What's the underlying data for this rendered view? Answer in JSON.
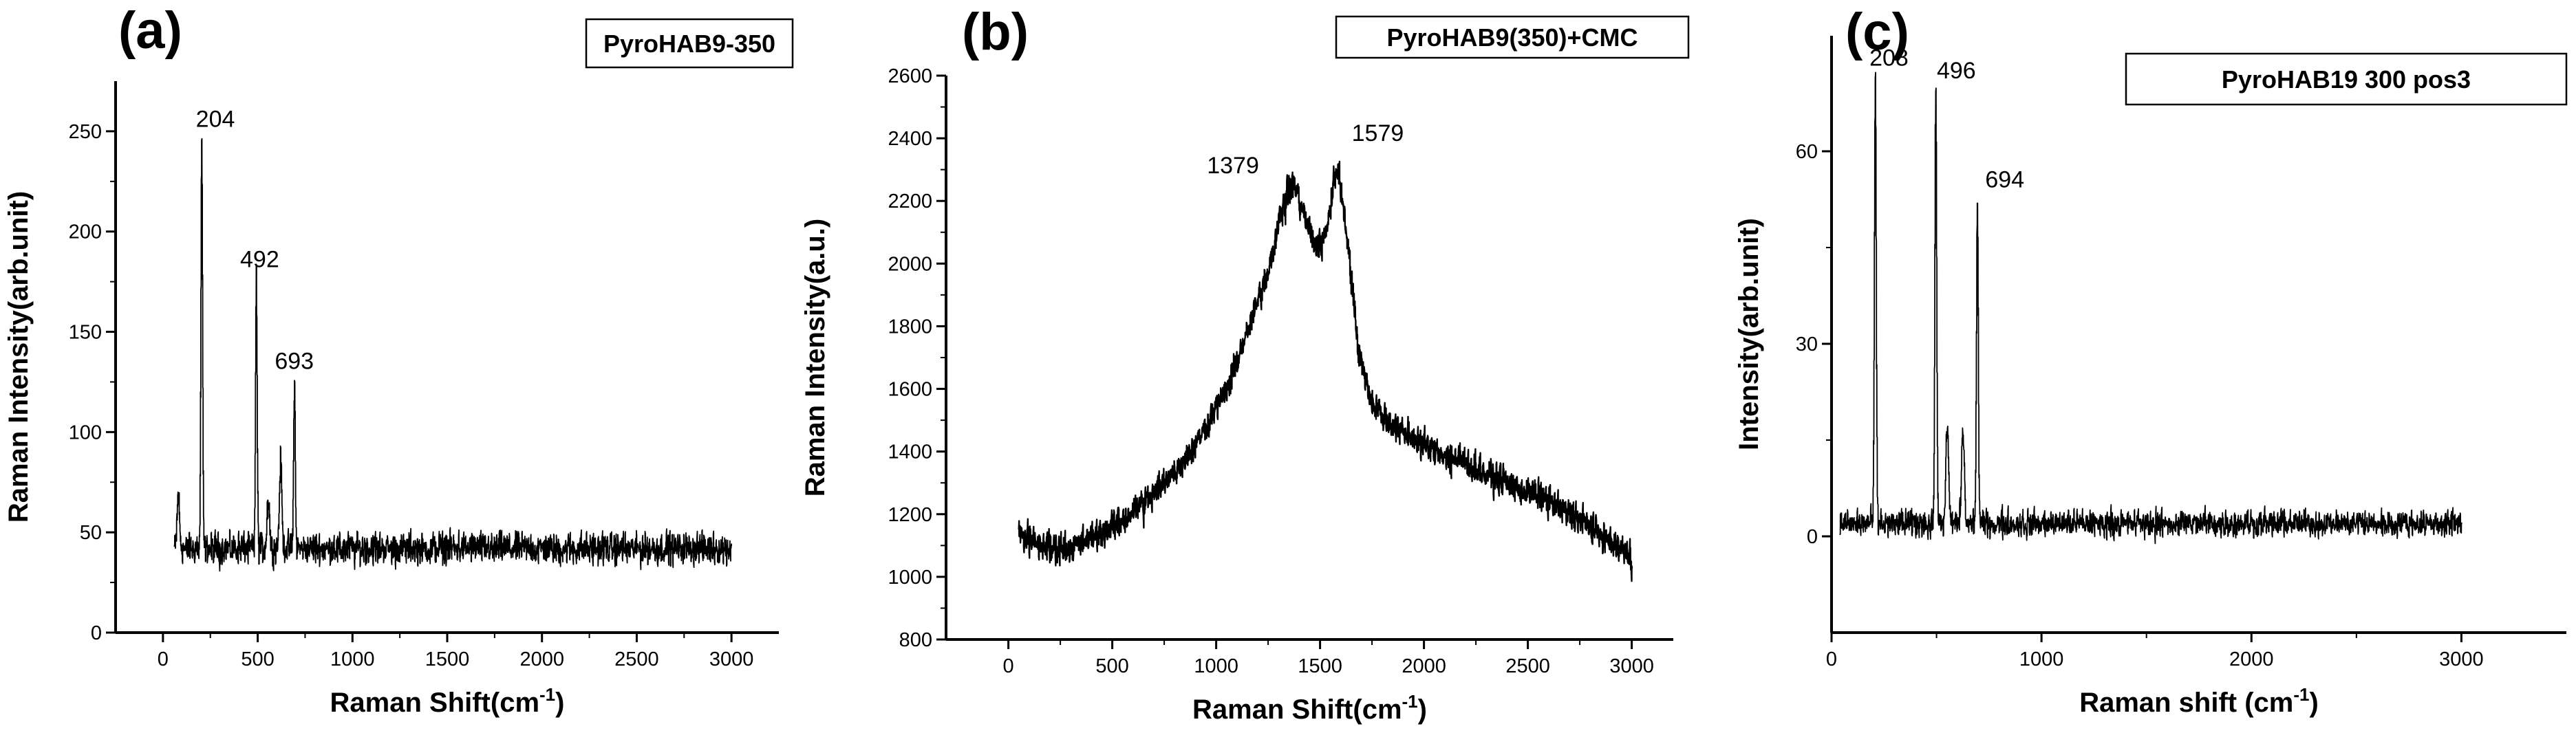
{
  "chart_data": [
    {
      "type": "line",
      "panel_label": "(a)",
      "legend": "PyroHAB9-350",
      "xlabel": "Raman Shift(cm",
      "xlabel_sup": "-1",
      "xlabel_end": ")",
      "ylabel": "Raman Intensity(arb.unit)",
      "xlim": [
        -250,
        3250
      ],
      "ylim": [
        0,
        275
      ],
      "xticks": [
        0,
        500,
        1000,
        1500,
        2000,
        2500,
        3000
      ],
      "yticks": [
        0,
        50,
        100,
        150,
        200,
        250
      ],
      "baseline": 42,
      "noise": 7,
      "x_range": [
        60,
        3000
      ],
      "peaks": [
        {
          "x": 204,
          "y": 246,
          "label": "204"
        },
        {
          "x": 492,
          "y": 176,
          "label": "492"
        },
        {
          "x": 693,
          "y": 126,
          "label": "693"
        }
      ],
      "minor_peaks": [
        {
          "x": 80,
          "y": 68
        },
        {
          "x": 555,
          "y": 68
        },
        {
          "x": 620,
          "y": 85
        }
      ]
    },
    {
      "type": "line",
      "panel_label": "(b)",
      "legend": "PyroHAB9(350)+CMC",
      "xlabel": "Raman Shift(cm",
      "xlabel_sup": "-1",
      "xlabel_end": ")",
      "ylabel": "Raman Intensity(a.u.)",
      "xlim": [
        -300,
        3200
      ],
      "ylim": [
        800,
        2600
      ],
      "xticks": [
        0,
        500,
        1000,
        1500,
        2000,
        2500,
        3000
      ],
      "yticks": [
        800,
        1000,
        1200,
        1400,
        1600,
        1800,
        2000,
        2200,
        2400,
        2600
      ],
      "noise": 40,
      "x_range": [
        50,
        3000
      ],
      "curve": [
        [
          50,
          1140
        ],
        [
          150,
          1100
        ],
        [
          300,
          1090
        ],
        [
          500,
          1160
        ],
        [
          700,
          1260
        ],
        [
          900,
          1420
        ],
        [
          1050,
          1600
        ],
        [
          1150,
          1780
        ],
        [
          1250,
          1980
        ],
        [
          1320,
          2180
        ],
        [
          1370,
          2260
        ],
        [
          1420,
          2160
        ],
        [
          1470,
          2060
        ],
        [
          1510,
          2060
        ],
        [
          1550,
          2180
        ],
        [
          1580,
          2320
        ],
        [
          1620,
          2150
        ],
        [
          1680,
          1740
        ],
        [
          1750,
          1550
        ],
        [
          1850,
          1480
        ],
        [
          2000,
          1420
        ],
        [
          2200,
          1360
        ],
        [
          2400,
          1300
        ],
        [
          2600,
          1240
        ],
        [
          2800,
          1160
        ],
        [
          3000,
          1060
        ]
      ],
      "peaks": [
        {
          "x": 1379,
          "y": 2240,
          "label": "1379"
        },
        {
          "x": 1579,
          "y": 2330,
          "label": "1579"
        }
      ]
    },
    {
      "type": "line",
      "panel_label": "(c)",
      "legend": "PyroHAB19 300 pos3",
      "xlabel": "Raman shift (cm",
      "xlabel_sup": "-1",
      "xlabel_end": ")",
      "ylabel": "Intensity(arb.unit)",
      "xlim": [
        0,
        3500
      ],
      "ylim": [
        -15,
        78
      ],
      "xticks": [
        0,
        1000,
        2000,
        3000
      ],
      "yticks": [
        0,
        30,
        60
      ],
      "baseline": 2,
      "noise": 1.8,
      "x_range": [
        40,
        3000
      ],
      "peaks": [
        {
          "x": 208,
          "y": 71,
          "label": "208"
        },
        {
          "x": 496,
          "y": 69,
          "label": "496"
        },
        {
          "x": 694,
          "y": 52,
          "label": "694"
        }
      ],
      "minor_peaks": [
        {
          "x": 550,
          "y": 17
        },
        {
          "x": 625,
          "y": 17
        }
      ]
    }
  ]
}
